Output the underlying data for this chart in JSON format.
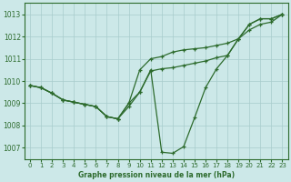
{
  "title": "Graphe pression niveau de la mer (hPa)",
  "background_color": "#cce8e8",
  "line_color": "#2d6b2d",
  "xlim": [
    -0.5,
    23.5
  ],
  "ylim": [
    1006.5,
    1013.5
  ],
  "yticks": [
    1007,
    1008,
    1009,
    1010,
    1011,
    1012,
    1013
  ],
  "xticks": [
    0,
    1,
    2,
    3,
    4,
    5,
    6,
    7,
    8,
    9,
    10,
    11,
    12,
    13,
    14,
    15,
    16,
    17,
    18,
    19,
    20,
    21,
    22,
    23
  ],
  "line1_x": [
    0,
    1,
    2,
    3,
    4,
    5,
    6,
    7,
    8,
    9,
    10,
    11,
    12,
    13,
    14,
    15,
    16,
    17,
    18,
    19,
    20,
    21,
    22,
    23
  ],
  "line1_y": [
    1009.8,
    1009.7,
    1009.45,
    1009.15,
    1009.05,
    1008.95,
    1008.85,
    1008.4,
    1008.3,
    1008.85,
    1009.5,
    1010.45,
    1010.55,
    1010.6,
    1010.7,
    1010.8,
    1010.9,
    1011.05,
    1011.15,
    1011.9,
    1012.55,
    1012.8,
    1012.8,
    1013.0
  ],
  "line2_x": [
    0,
    1,
    2,
    3,
    4,
    5,
    6,
    7,
    8,
    9,
    10,
    11,
    12,
    13,
    14,
    15,
    16,
    17,
    18,
    19,
    20,
    21,
    22,
    23
  ],
  "line2_y": [
    1009.8,
    1009.7,
    1009.45,
    1009.15,
    1009.05,
    1008.95,
    1008.85,
    1008.4,
    1008.3,
    1009.0,
    1010.5,
    1011.0,
    1011.1,
    1011.3,
    1011.4,
    1011.45,
    1011.5,
    1011.6,
    1011.7,
    1011.9,
    1012.3,
    1012.55,
    1012.65,
    1013.0
  ],
  "line3_x": [
    0,
    1,
    2,
    3,
    4,
    5,
    6,
    7,
    8,
    9,
    10,
    11,
    12,
    13,
    14,
    15,
    16,
    17,
    18,
    19,
    20,
    21,
    22,
    23
  ],
  "line3_y": [
    1009.8,
    1009.7,
    1009.45,
    1009.15,
    1009.05,
    1008.95,
    1008.85,
    1008.4,
    1008.3,
    1009.0,
    1009.5,
    1010.5,
    1006.8,
    1006.75,
    1007.05,
    1008.35,
    1009.7,
    1010.55,
    1011.15,
    1011.9,
    1012.55,
    1012.8,
    1012.8,
    1013.0
  ]
}
